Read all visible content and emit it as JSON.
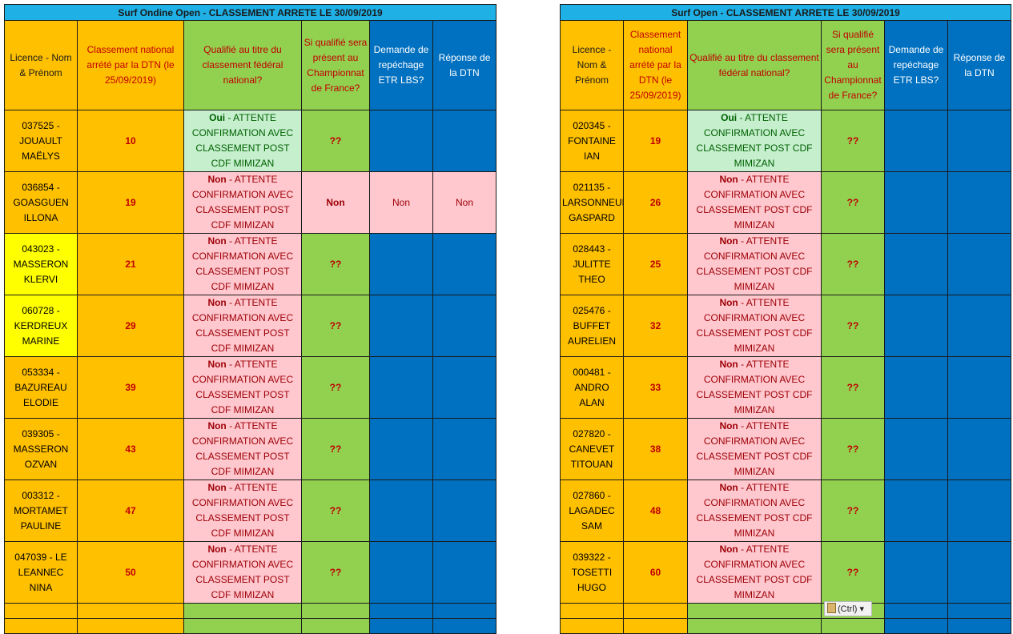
{
  "left": {
    "title": "Surf Ondine Open - CLASSEMENT ARRETE LE 30/09/2019",
    "headers": [
      "Licence - Nom & Prénom",
      "Classement national arrété par la DTN (le 25/09/2019)",
      "Qualifié au titre du classement fédéral national?",
      "Si qualifié sera présent au Championnat de France?",
      "Demande de repéchage ETR LBS?",
      "Réponse de la DTN"
    ],
    "rows": [
      {
        "licence": "037525 - JOUAULT MAËLYS",
        "rank": "10",
        "qual_bold": "Oui",
        "qual_rest": " - ATTENTE CONFIRMATION AVEC CLASSEMENT POST CDF MIMIZAN",
        "present": "??",
        "repechage": "",
        "reponse": ""
      },
      {
        "licence": "036854 - GOASGUEN ILLONA",
        "rank": "19",
        "qual_bold": "Non",
        "qual_rest": " - ATTENTE CONFIRMATION AVEC CLASSEMENT POST CDF MIMIZAN",
        "present": "Non",
        "repechage": "Non",
        "reponse": "Non"
      },
      {
        "licence": "043023 - MASSERON KLERVI",
        "rank": "21",
        "qual_bold": "Non",
        "qual_rest": " - ATTENTE CONFIRMATION AVEC CLASSEMENT POST CDF MIMIZAN",
        "present": "??",
        "repechage": "",
        "reponse": ""
      },
      {
        "licence": "060728 - KERDREUX MARINE",
        "rank": "29",
        "qual_bold": "Non",
        "qual_rest": " - ATTENTE CONFIRMATION AVEC CLASSEMENT POST CDF MIMIZAN",
        "present": "??",
        "repechage": "",
        "reponse": ""
      },
      {
        "licence": "053334 - BAZUREAU ELODIE",
        "rank": "39",
        "qual_bold": "Non",
        "qual_rest": " - ATTENTE CONFIRMATION AVEC CLASSEMENT POST CDF MIMIZAN",
        "present": "??",
        "repechage": "",
        "reponse": ""
      },
      {
        "licence": "039305 - MASSERON OZVAN",
        "rank": "43",
        "qual_bold": "Non",
        "qual_rest": " - ATTENTE CONFIRMATION AVEC CLASSEMENT POST CDF MIMIZAN",
        "present": "??",
        "repechage": "",
        "reponse": ""
      },
      {
        "licence": "003312 - MORTAMET PAULINE",
        "rank": "47",
        "qual_bold": "Non",
        "qual_rest": " - ATTENTE CONFIRMATION AVEC CLASSEMENT POST CDF MIMIZAN",
        "present": "??",
        "repechage": "",
        "reponse": ""
      },
      {
        "licence": "047039 - LE LEANNEC NINA",
        "rank": "50",
        "qual_bold": "Non",
        "qual_rest": " - ATTENTE CONFIRMATION AVEC CLASSEMENT POST CDF MIMIZAN",
        "present": "??",
        "repechage": "",
        "reponse": ""
      }
    ]
  },
  "right": {
    "title": "Surf Open - CLASSEMENT ARRETE LE 30/09/2019",
    "headers": [
      "Licence - Nom & Prénom",
      "Classement national arrété par la DTN (le 25/09/2019)",
      "Qualifié au titre du classement fédéral national?",
      "Si qualifié sera présent au Championnat de France?",
      "Demande de repéchage ETR LBS?",
      "Réponse de la DTN"
    ],
    "rows": [
      {
        "licence": "020345 - FONTAINE IAN",
        "rank": "19",
        "qual_bold": "Oui",
        "qual_rest": " - ATTENTE CONFIRMATION AVEC CLASSEMENT POST CDF MIMIZAN",
        "present": "??"
      },
      {
        "licence": "021135 - LARSONNEUR GASPARD",
        "rank": "26",
        "qual_bold": "Non",
        "qual_rest": " - ATTENTE CONFIRMATION AVEC CLASSEMENT POST CDF MIMIZAN",
        "present": "??"
      },
      {
        "licence": "028443 - JULITTE THEO",
        "rank": "25",
        "qual_bold": "Non",
        "qual_rest": " - ATTENTE CONFIRMATION AVEC CLASSEMENT POST CDF MIMIZAN",
        "present": "??"
      },
      {
        "licence": "025476 - BUFFET AURELIEN",
        "rank": "32",
        "qual_bold": "Non",
        "qual_rest": " - ATTENTE CONFIRMATION AVEC CLASSEMENT POST CDF MIMIZAN",
        "present": "??"
      },
      {
        "licence": "000481 - ANDRO ALAN",
        "rank": "33",
        "qual_bold": "Non",
        "qual_rest": " - ATTENTE CONFIRMATION AVEC CLASSEMENT POST CDF MIMIZAN",
        "present": "??"
      },
      {
        "licence": "027820 - CANEVET TITOUAN",
        "rank": "38",
        "qual_bold": "Non",
        "qual_rest": " - ATTENTE CONFIRMATION AVEC CLASSEMENT POST CDF MIMIZAN",
        "present": "??"
      },
      {
        "licence": "027860 - LAGADEC SAM",
        "rank": "48",
        "qual_bold": "Non",
        "qual_rest": " - ATTENTE CONFIRMATION AVEC CLASSEMENT POST CDF MIMIZAN",
        "present": "??"
      },
      {
        "licence": "039322 - TOSETTI HUGO",
        "rank": "60",
        "qual_bold": "Non",
        "qual_rest": " - ATTENTE CONFIRMATION AVEC CLASSEMENT POST CDF MIMIZAN",
        "present": "??"
      }
    ]
  },
  "paste_options": {
    "label": "(Ctrl)",
    "icon": "clipboard-icon",
    "caret": "▾"
  }
}
